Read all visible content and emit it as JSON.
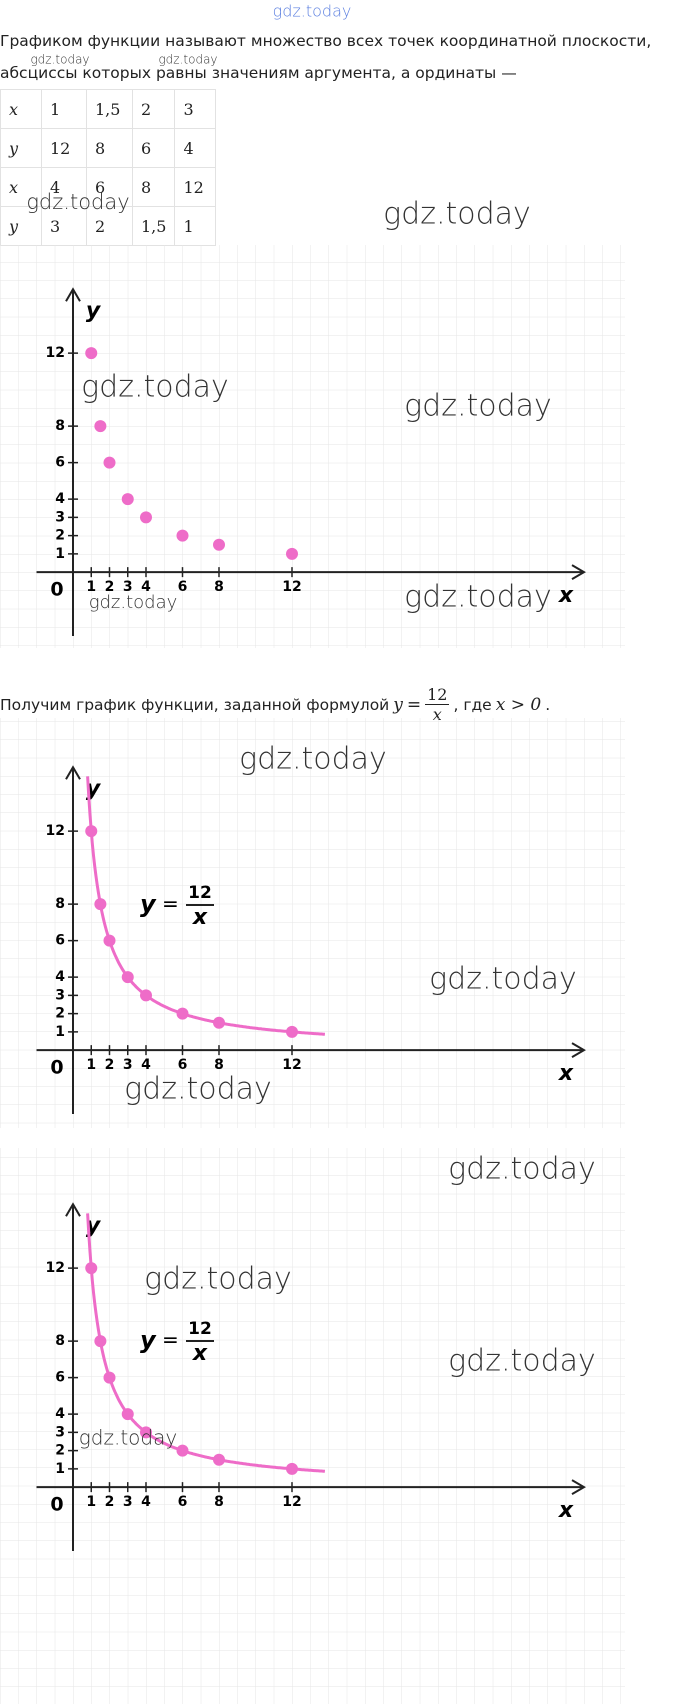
{
  "intro": [
    "Графиком функции называют множество всех точек координатной плоскости,",
    "абсциссы которых равны значениям аргумента, а ординаты —"
  ],
  "table": {
    "rows": [
      [
        "x",
        "1",
        "1,5",
        "2",
        "3"
      ],
      [
        "y",
        "12",
        "8",
        "6",
        "4"
      ],
      [
        "x",
        "4",
        "6",
        "8",
        "12"
      ],
      [
        "y",
        "3",
        "2",
        "1,5",
        "1"
      ]
    ]
  },
  "formula_text": {
    "before": "Получим график функции, заданной формулой",
    "lhs": "y",
    "eq": "=",
    "numerator": "12",
    "denominator": "x",
    "middle": ", где",
    "condition": "x > 0",
    "end": "."
  },
  "watermarks": [
    "gdz.today",
    "gdz.today",
    "gdz.today",
    "gdz.today",
    "gdz.today",
    "gdz.today",
    "gdz.today",
    "gdz.today",
    "gdz.today",
    "gdz.today",
    "gdz.today",
    "gdz.today",
    "gdz.today",
    "gdz.today",
    "gdz.today",
    "gdz.today"
  ],
  "chart_data": [
    {
      "type": "scatter",
      "x": [
        1,
        1.5,
        2,
        3,
        4,
        6,
        8,
        12
      ],
      "values": [
        12,
        8,
        6,
        4,
        3,
        2,
        1.5,
        1
      ],
      "color": "#ee6cc8",
      "xlim": [
        -2,
        28
      ],
      "ylim": [
        -3.5,
        15.5
      ],
      "xticks": [
        1,
        2,
        3,
        4,
        6,
        8,
        12
      ],
      "yticks": [
        1,
        2,
        3,
        4,
        6,
        8,
        12
      ],
      "origin_label": "0",
      "x_label": "x",
      "y_label": "y"
    },
    {
      "type": "scatter",
      "x": [
        1,
        1.5,
        2,
        3,
        4,
        6,
        8,
        12
      ],
      "values": [
        12,
        8,
        6,
        4,
        3,
        2,
        1.5,
        1
      ],
      "color": "#ee6cc8",
      "xlim": [
        -2,
        28
      ],
      "ylim": [
        -3.5,
        15.5
      ],
      "xticks": [
        1,
        2,
        3,
        4,
        6,
        8,
        12
      ],
      "yticks": [
        1,
        2,
        3,
        4,
        6,
        8,
        12
      ],
      "origin_label": "0",
      "x_label": "x",
      "y_label": "y",
      "formula": {
        "lhs": "y",
        "eq": "=",
        "numerator": 12,
        "denominator": "x"
      }
    },
    {
      "type": "scatter",
      "x": [
        1,
        1.5,
        2,
        3,
        4,
        6,
        8,
        12
      ],
      "values": [
        12,
        8,
        6,
        4,
        3,
        2,
        1.5,
        1
      ],
      "color": "#ee6cc8",
      "xlim": [
        -2,
        28
      ],
      "ylim": [
        -3.5,
        15.5
      ],
      "xticks": [
        1,
        2,
        3,
        4,
        6,
        8,
        12
      ],
      "yticks": [
        1,
        2,
        3,
        4,
        6,
        8,
        12
      ],
      "origin_label": "0",
      "x_label": "x",
      "y_label": "y",
      "formula": {
        "lhs": "y",
        "eq": "=",
        "numerator": 12,
        "denominator": "x"
      }
    }
  ]
}
